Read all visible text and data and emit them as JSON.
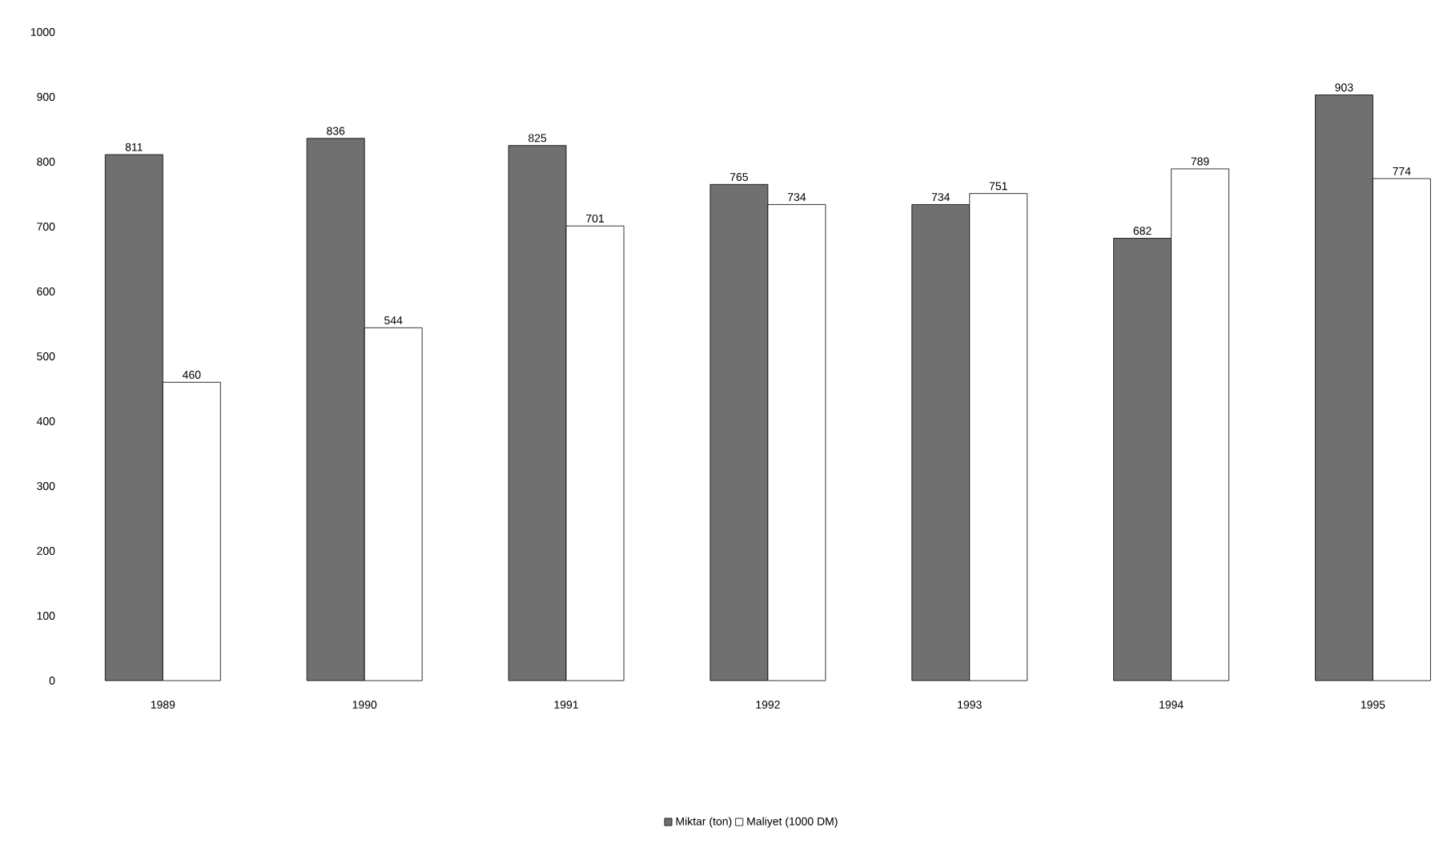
{
  "chart_data": {
    "type": "bar",
    "categories": [
      "1989",
      "1990",
      "1991",
      "1992",
      "1993",
      "1994",
      "1995"
    ],
    "series": [
      {
        "name": "Miktar (ton)",
        "color": "#707070",
        "values": [
          811,
          836,
          825,
          765,
          734,
          682,
          903
        ]
      },
      {
        "name": "Maliyet (1000 DM)",
        "color": "#ffffff",
        "values": [
          460,
          544,
          701,
          734,
          751,
          789,
          774
        ]
      }
    ],
    "ylim": [
      0,
      1000
    ],
    "yticks": [
      0,
      100,
      200,
      300,
      400,
      500,
      600,
      700,
      800,
      900,
      1000
    ],
    "data_labels": true,
    "legend": "bottom",
    "grid": false
  }
}
